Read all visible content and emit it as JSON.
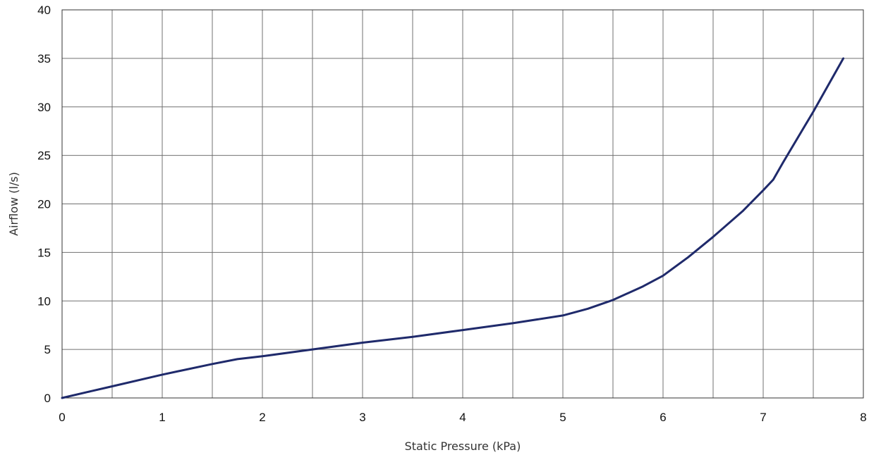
{
  "chart_data": {
    "type": "line",
    "title": "",
    "xlabel": "Static Pressure (kPa)",
    "ylabel": "Airflow (l/s)",
    "xlim": [
      0,
      8
    ],
    "ylim": [
      0,
      40
    ],
    "x_ticks": [
      "0",
      "1",
      "2",
      "3",
      "4",
      "5",
      "6",
      "7",
      "8"
    ],
    "y_ticks": [
      "0",
      "5",
      "10",
      "15",
      "20",
      "25",
      "30",
      "35",
      "40"
    ],
    "x_minor_grid_step": 0.5,
    "y_grid_step": 5,
    "grid": true,
    "legend": "none",
    "series": [
      {
        "color": "#1f2a6b",
        "x": [
          0,
          0.25,
          0.5,
          1.0,
          1.5,
          1.75,
          2.0,
          2.5,
          3.0,
          3.5,
          4.0,
          4.5,
          5.0,
          5.25,
          5.5,
          5.8,
          6.0,
          6.25,
          6.5,
          6.8,
          7.0,
          7.1,
          7.2,
          7.5,
          7.8
        ],
        "y": [
          0,
          0.6,
          1.2,
          2.4,
          3.5,
          4.0,
          4.3,
          5.0,
          5.7,
          6.3,
          7.0,
          7.7,
          8.5,
          9.2,
          10.1,
          11.5,
          12.6,
          14.5,
          16.6,
          19.3,
          21.4,
          22.5,
          24.3,
          29.5,
          35.0
        ]
      }
    ]
  }
}
